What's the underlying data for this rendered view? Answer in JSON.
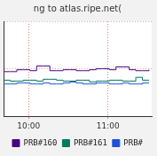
{
  "chart_data": {
    "type": "line",
    "title": "ng to atlas.ripe.net(",
    "x": [
      581,
      586,
      591,
      596,
      601,
      606,
      611,
      616,
      621,
      626,
      631,
      636,
      641,
      646,
      651,
      656,
      661,
      666,
      671,
      676,
      681,
      686,
      691
    ],
    "xlim": [
      581,
      693
    ],
    "xticks": [
      {
        "value": 600,
        "label": "10:00"
      },
      {
        "value": 660,
        "label": "11:00"
      }
    ],
    "ylim": [
      0,
      10
    ],
    "yticks": [
      0,
      5,
      10
    ],
    "grid": true,
    "legend": "bottom",
    "tick_labels": "x",
    "series": [
      {
        "name": "PRB#160",
        "color": "#4b0082",
        "values": [
          4.7,
          4.7,
          4.9,
          4.9,
          4.8,
          5.3,
          5.3,
          4.8,
          4.8,
          4.9,
          4.9,
          4.8,
          4.8,
          4.9,
          5.0,
          5.0,
          4.9,
          5.2,
          5.2,
          4.9,
          4.8,
          4.8,
          4.9
        ]
      },
      {
        "name": "PRB#161",
        "color": "#007a5e",
        "values": [
          3.8,
          3.7,
          3.7,
          3.8,
          3.8,
          3.7,
          3.9,
          3.9,
          3.8,
          3.7,
          3.7,
          3.8,
          3.8,
          3.6,
          3.7,
          3.7,
          3.8,
          3.8,
          3.7,
          3.7,
          4.1,
          3.8,
          3.8
        ]
      },
      {
        "name": "PRB#",
        "color": "#1e50d8",
        "values": [
          3.4,
          3.4,
          3.5,
          3.5,
          3.4,
          3.4,
          3.5,
          3.4,
          3.4,
          3.5,
          3.6,
          3.5,
          3.4,
          3.4,
          3.5,
          3.5,
          3.4,
          3.4,
          3.5,
          3.4,
          3.4,
          3.5,
          3.5
        ]
      }
    ]
  }
}
